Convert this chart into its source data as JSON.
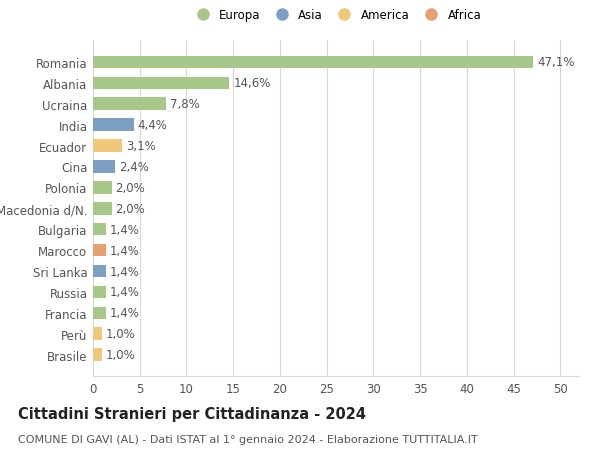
{
  "categories": [
    "Brasile",
    "Perù",
    "Francia",
    "Russia",
    "Sri Lanka",
    "Marocco",
    "Bulgaria",
    "Macedonia d/N.",
    "Polonia",
    "Cina",
    "Ecuador",
    "India",
    "Ucraina",
    "Albania",
    "Romania"
  ],
  "values": [
    1.0,
    1.0,
    1.4,
    1.4,
    1.4,
    1.4,
    1.4,
    2.0,
    2.0,
    2.4,
    3.1,
    4.4,
    7.8,
    14.6,
    47.1
  ],
  "labels": [
    "1,0%",
    "1,0%",
    "1,4%",
    "1,4%",
    "1,4%",
    "1,4%",
    "1,4%",
    "2,0%",
    "2,0%",
    "2,4%",
    "3,1%",
    "4,4%",
    "7,8%",
    "14,6%",
    "47,1%"
  ],
  "colors": [
    "#f0c87a",
    "#f0c87a",
    "#a8c88a",
    "#a8c88a",
    "#7ba0c4",
    "#e8a070",
    "#a8c88a",
    "#a8c88a",
    "#a8c88a",
    "#7ba0c4",
    "#f0c87a",
    "#7ba0c4",
    "#a8c88a",
    "#a8c88a",
    "#a8c88a"
  ],
  "legend_labels": [
    "Europa",
    "Asia",
    "America",
    "Africa"
  ],
  "legend_colors": [
    "#a8c88a",
    "#7ba0c4",
    "#f0c87a",
    "#e8a070"
  ],
  "xlim": [
    0,
    52
  ],
  "xticks": [
    0,
    5,
    10,
    15,
    20,
    25,
    30,
    35,
    40,
    45,
    50
  ],
  "title": "Cittadini Stranieri per Cittadinanza - 2024",
  "subtitle": "COMUNE DI GAVI (AL) - Dati ISTAT al 1° gennaio 2024 - Elaborazione TUTTITALIA.IT",
  "bg_color": "#ffffff",
  "grid_color": "#d8d8d8",
  "bar_height": 0.6,
  "label_fontsize": 8.5,
  "ytick_fontsize": 8.5,
  "xtick_fontsize": 8.5,
  "title_fontsize": 10.5,
  "subtitle_fontsize": 8.0
}
